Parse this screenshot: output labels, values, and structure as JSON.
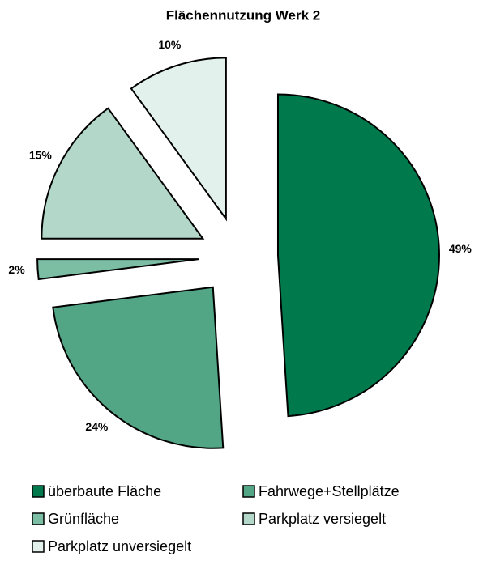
{
  "chart_data": {
    "type": "pie",
    "title": "Flächennutzung Werk 2",
    "categories": [
      "überbaute Fläche",
      "Fahrwege+Stellplätze",
      "Grünfläche",
      "Parkplatz versiegelt",
      "Parkplatz unversiegelt"
    ],
    "values": [
      49,
      24,
      2,
      15,
      10
    ],
    "value_labels": [
      "49%",
      "24%",
      "2%",
      "15%",
      "10%"
    ],
    "colors": [
      "#007a4d",
      "#52a585",
      "#7bbea4",
      "#b3d8c9",
      "#e3f1ec"
    ],
    "legend": "bottom"
  }
}
